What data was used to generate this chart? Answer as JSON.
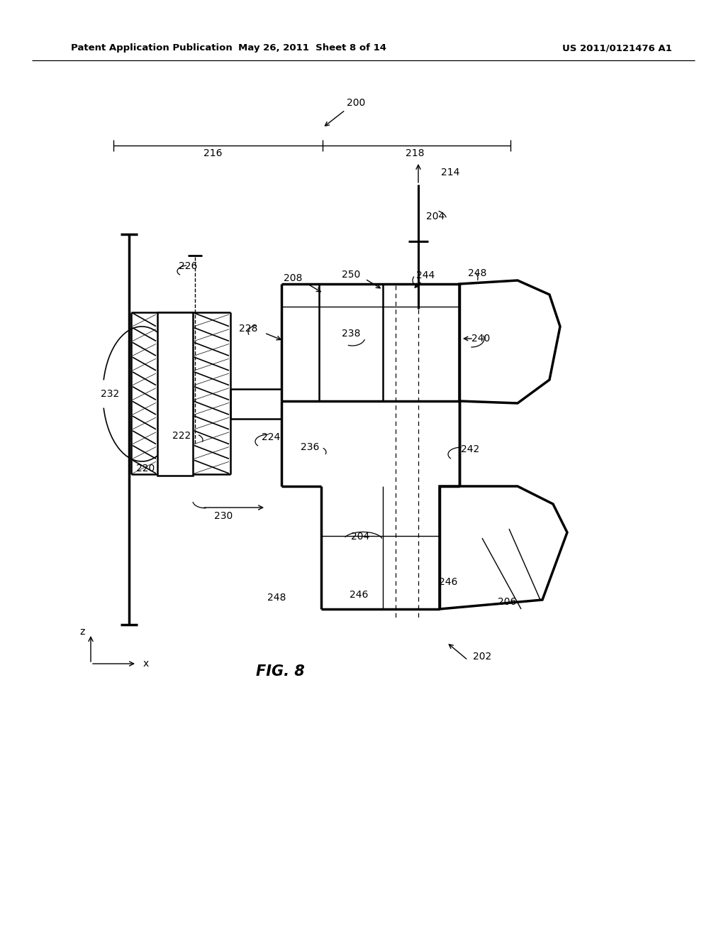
{
  "header_left": "Patent Application Publication",
  "header_mid": "May 26, 2011  Sheet 8 of 14",
  "header_right": "US 2011/0121476 A1",
  "figure_label": "FIG. 8",
  "background_color": "#ffffff",
  "line_color": "#000000"
}
